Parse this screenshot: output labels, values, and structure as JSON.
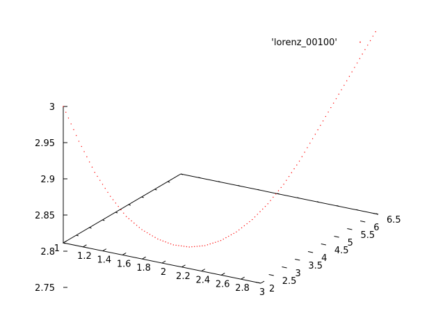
{
  "chart_data": {
    "type": "scatter",
    "dimensions": 3,
    "legend": {
      "entries": [
        "'lorenz_00100'"
      ],
      "placement": "top-right",
      "marker_color": "#ff0000"
    },
    "axes": {
      "x": {
        "range": [
          1,
          3
        ],
        "ticks": [
          "1",
          "1.2",
          "1.4",
          "1.6",
          "1.8",
          "2",
          "2.2",
          "2.4",
          "2.6",
          "2.8",
          "3"
        ]
      },
      "y": {
        "range": [
          2,
          6.5
        ],
        "ticks": [
          "2",
          "2.5",
          "3",
          "3.5",
          "4",
          "4.5",
          "5",
          "5.5",
          "6",
          "6.5"
        ]
      },
      "z": {
        "range": [
          2.7,
          3
        ],
        "ticks": [
          "2.75",
          "2.8",
          "2.85",
          "2.9",
          "2.95",
          "3"
        ]
      }
    },
    "grid": false,
    "series": [
      {
        "name": "'lorenz_00100'",
        "color": "#ff0000",
        "marker": "dot",
        "x": [
          1.0,
          1.1,
          1.2,
          1.3,
          1.4,
          1.5,
          1.6,
          1.7,
          1.8,
          1.9,
          2.0,
          2.1,
          2.2,
          2.3,
          2.4,
          2.5,
          2.6,
          2.7,
          2.8,
          2.9,
          3.0
        ],
        "y": [
          2.0,
          2.22,
          2.45,
          2.67,
          2.9,
          3.12,
          3.35,
          3.57,
          3.8,
          4.02,
          4.25,
          4.47,
          4.7,
          4.92,
          5.15,
          5.37,
          5.6,
          5.82,
          6.05,
          6.27,
          6.5
        ],
        "z": [
          3.0,
          2.95,
          2.905,
          2.87,
          2.84,
          2.82,
          2.805,
          2.795,
          2.79,
          2.79,
          2.795,
          2.805,
          2.82,
          2.84,
          2.865,
          2.895,
          2.93,
          2.965,
          3.0,
          3.035,
          3.07
        ]
      }
    ]
  }
}
